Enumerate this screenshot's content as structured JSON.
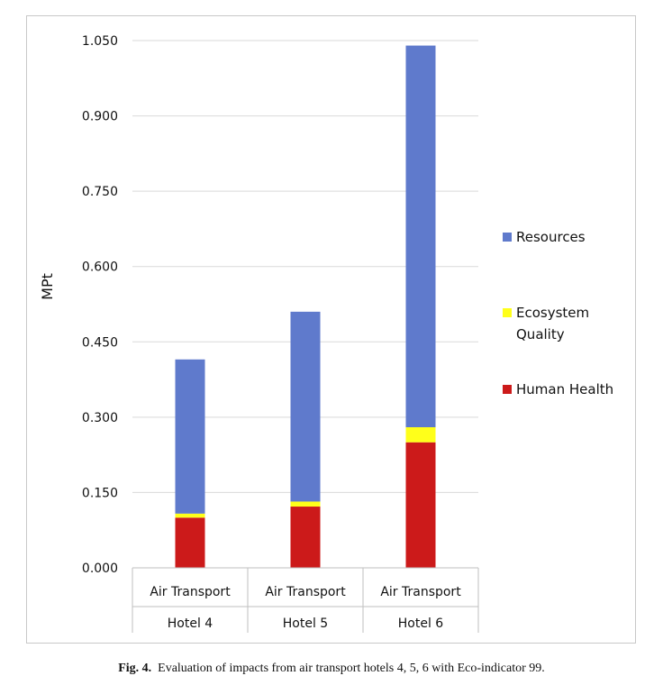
{
  "chart_data": {
    "type": "bar",
    "stacked": true,
    "ylabel": "MPt",
    "ylim": [
      0,
      1.05
    ],
    "yticks": [
      "0.000",
      "0.150",
      "0.300",
      "0.450",
      "0.600",
      "0.750",
      "0.900",
      "1.050"
    ],
    "grid": true,
    "legend_position": "right",
    "categories": [
      [
        "Air Transport",
        "Hotel 4"
      ],
      [
        "Air Transport",
        "Hotel 5"
      ],
      [
        "Air Transport",
        "Hotel 6"
      ]
    ],
    "series": [
      {
        "name": "Human Health",
        "color": "#cc1a1a",
        "values": [
          0.1,
          0.122,
          0.25
        ]
      },
      {
        "name": "Ecosystem Quality",
        "color": "#ffff1a",
        "values": [
          0.008,
          0.01,
          0.03
        ]
      },
      {
        "name": "Resources",
        "color": "#5f7acc",
        "values": [
          0.307,
          0.378,
          0.76
        ]
      }
    ],
    "legend_order": [
      "Resources",
      "Ecosystem Quality",
      "Human Health"
    ]
  },
  "caption": {
    "label": "Fig. 4.",
    "text": "Evaluation of impacts from air transport hotels 4, 5, 6 with Eco-indicator 99."
  }
}
